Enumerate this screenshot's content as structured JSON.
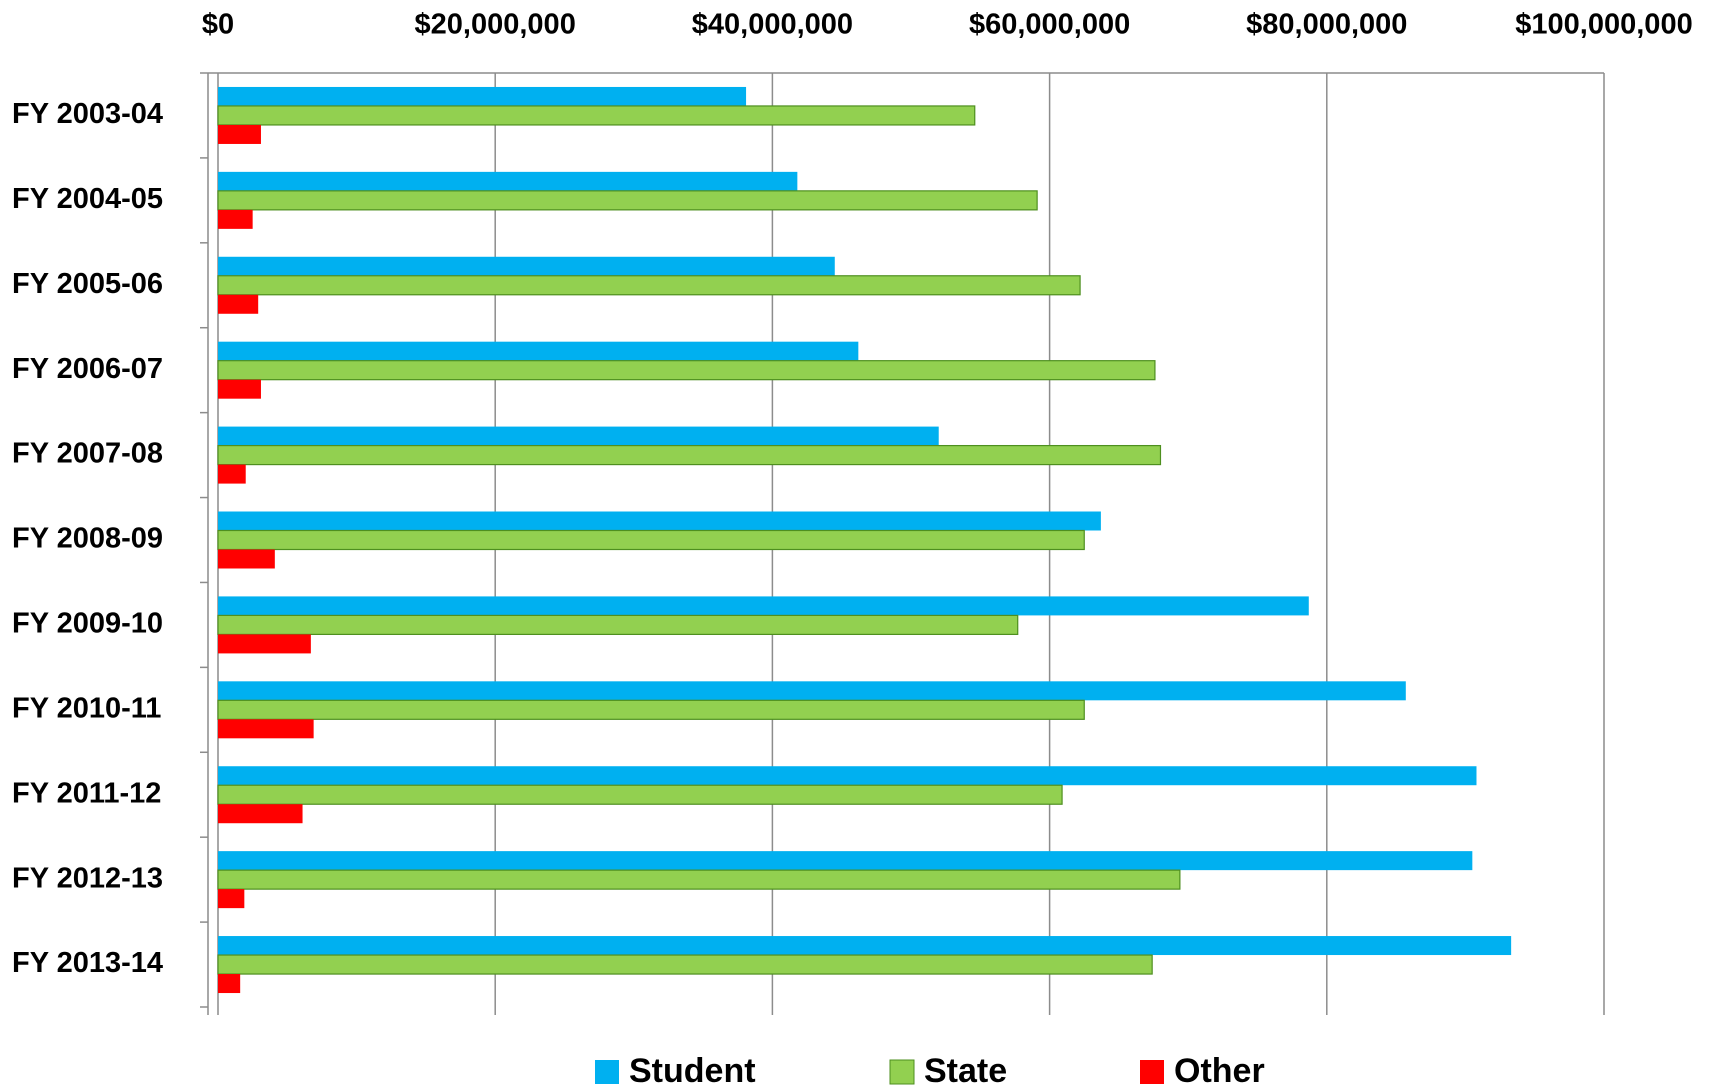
{
  "chart_data": {
    "type": "hbar",
    "categories": [
      "FY 2003-04",
      "FY 2004-05",
      "FY 2005-06",
      "FY 2006-07",
      "FY 2007-08",
      "FY 2008-09",
      "FY 2009-10",
      "FY 2010-11",
      "FY 2011-12",
      "FY 2012-13",
      "FY 2013-14"
    ],
    "series": [
      {
        "name": "Student",
        "color": "#00b0f0",
        "values": [
          38100000,
          41800000,
          44500000,
          46200000,
          52000000,
          63700000,
          78700000,
          85700000,
          90800000,
          90500000,
          93300000
        ]
      },
      {
        "name": "State",
        "color": "#92d050",
        "values": [
          54600000,
          59100000,
          62200000,
          67600000,
          68000000,
          62500000,
          57700000,
          62500000,
          60900000,
          69400000,
          67400000
        ]
      },
      {
        "name": "Other",
        "color": "#ff0000",
        "values": [
          3100000,
          2500000,
          2900000,
          3100000,
          2000000,
          4100000,
          6700000,
          6900000,
          6100000,
          1900000,
          1600000
        ]
      }
    ],
    "xlim": [
      0,
      100000000
    ],
    "xticks": [
      {
        "value": 0,
        "label": "$0"
      },
      {
        "value": 20000000,
        "label": "$20,000,000"
      },
      {
        "value": 40000000,
        "label": "$40,000,000"
      },
      {
        "value": 60000000,
        "label": "$60,000,000"
      },
      {
        "value": 80000000,
        "label": "$80,000,000"
      },
      {
        "value": 100000000,
        "label": "$100,000,000"
      }
    ],
    "grid": true,
    "legend": "bottom"
  }
}
